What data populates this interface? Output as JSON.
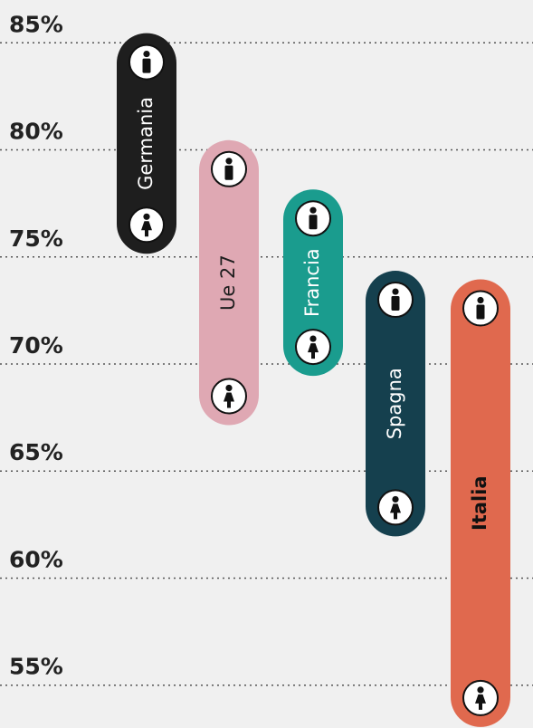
{
  "chart_data": {
    "type": "range",
    "categories": [
      "Germania",
      "Ue 27",
      "Francia",
      "Spagna",
      "Italia"
    ],
    "colors": [
      "#1e1e1e",
      "#dfa8b3",
      "#1a9c8e",
      "#15404e",
      "#e0694e"
    ],
    "label_colors": [
      "#ffffff",
      "#1e1e1e",
      "#ffffff",
      "#ffffff",
      "#111111"
    ],
    "label_bold": [
      false,
      false,
      false,
      false,
      true
    ],
    "series": [
      {
        "icon": "male",
        "values": [
          84.1,
          79.1,
          76.8,
          73.0,
          72.6
        ]
      },
      {
        "icon": "female",
        "values": [
          76.5,
          68.5,
          70.8,
          63.3,
          54.4
        ]
      }
    ],
    "ylim": [
      53,
      87
    ],
    "yticks": [
      {
        "value": 85,
        "label": "85%"
      },
      {
        "value": 80,
        "label": "80%"
      },
      {
        "value": 75,
        "label": "75%"
      },
      {
        "value": 70,
        "label": "70%"
      },
      {
        "value": 65,
        "label": "65%"
      },
      {
        "value": 60,
        "label": "60%"
      },
      {
        "value": 55,
        "label": "55%",
        "color": "#e0464f"
      }
    ],
    "grid": true
  }
}
